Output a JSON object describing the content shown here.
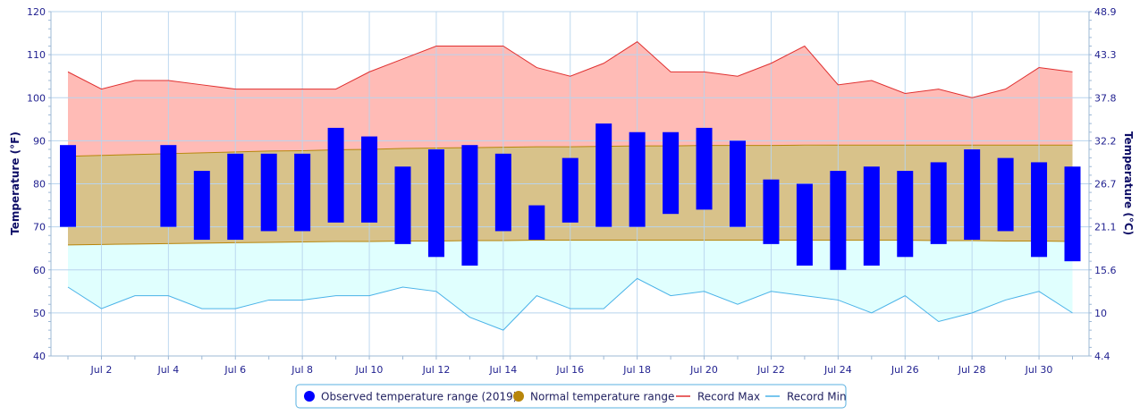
{
  "chart_data": {
    "type": "bar",
    "colors": {
      "observed": "#0000ff",
      "normal_fill": "#d8c28a",
      "normal_line": "#b8860b",
      "record_max_fill": "#ffbbb6",
      "record_max_line": "#e03030",
      "record_min_fill": "#e0fffe",
      "record_min_line": "#4ab3e8",
      "grid": "#b8d4ee",
      "axis_text": "#1f1f8f",
      "legend_border": "#5ab0e0"
    },
    "days": [
      1,
      2,
      3,
      4,
      5,
      6,
      7,
      8,
      9,
      10,
      11,
      12,
      13,
      14,
      15,
      16,
      17,
      18,
      19,
      20,
      21,
      22,
      23,
      24,
      25,
      26,
      27,
      28,
      29,
      30,
      31
    ],
    "x_tick_labels": [
      {
        "day": 2,
        "label": "Jul 2"
      },
      {
        "day": 4,
        "label": "Jul 4"
      },
      {
        "day": 6,
        "label": "Jul 6"
      },
      {
        "day": 8,
        "label": "Jul 8"
      },
      {
        "day": 10,
        "label": "Jul 10"
      },
      {
        "day": 12,
        "label": "Jul 12"
      },
      {
        "day": 14,
        "label": "Jul 14"
      },
      {
        "day": 16,
        "label": "Jul 16"
      },
      {
        "day": 18,
        "label": "Jul 18"
      },
      {
        "day": 20,
        "label": "Jul 20"
      },
      {
        "day": 22,
        "label": "Jul 22"
      },
      {
        "day": 24,
        "label": "Jul 24"
      },
      {
        "day": 26,
        "label": "Jul 26"
      },
      {
        "day": 28,
        "label": "Jul 28"
      },
      {
        "day": 30,
        "label": "Jul 30"
      }
    ],
    "y_left": {
      "title": "Temperature (°F)",
      "range": [
        40,
        120
      ],
      "ticks": [
        40,
        50,
        60,
        70,
        80,
        90,
        100,
        110,
        120
      ]
    },
    "y_right": {
      "title": "Temperature (°C)",
      "tick_labels": [
        "4.4",
        "10",
        "15.6",
        "21.1",
        "26.7",
        "32.2",
        "37.8",
        "43.3",
        "48.9"
      ]
    },
    "series": [
      {
        "name": "Observed temperature range (2019)",
        "kind": "range-bar",
        "low": [
          70,
          null,
          null,
          70,
          67,
          67,
          69,
          69,
          71,
          71,
          66,
          63,
          61,
          69,
          67,
          71,
          70,
          70,
          73,
          74,
          70,
          66,
          61,
          60,
          61,
          63,
          66,
          67,
          69,
          63,
          62
        ],
        "high": [
          89,
          null,
          null,
          89,
          83,
          87,
          87,
          87,
          93,
          91,
          84,
          88,
          89,
          87,
          75,
          86,
          94,
          92,
          92,
          93,
          90,
          81,
          80,
          83,
          84,
          83,
          85,
          88,
          86,
          85,
          84
        ]
      },
      {
        "name": "Normal temperature range",
        "kind": "range-area",
        "low": [
          65.8,
          65.9,
          66.0,
          66.1,
          66.2,
          66.3,
          66.4,
          66.5,
          66.6,
          66.6,
          66.7,
          66.7,
          66.8,
          66.8,
          66.9,
          66.9,
          66.9,
          66.9,
          66.9,
          66.9,
          66.9,
          66.9,
          66.9,
          66.9,
          66.9,
          66.9,
          66.8,
          66.8,
          66.7,
          66.7,
          66.6
        ],
        "high": [
          86.4,
          86.6,
          86.8,
          87.0,
          87.2,
          87.4,
          87.6,
          87.7,
          87.9,
          88.0,
          88.2,
          88.3,
          88.4,
          88.5,
          88.6,
          88.6,
          88.7,
          88.8,
          88.8,
          88.9,
          88.9,
          88.9,
          89.0,
          89.0,
          89.0,
          89.0,
          89.0,
          89.0,
          89.0,
          89.0,
          89.0
        ]
      },
      {
        "name": "Record Max",
        "kind": "line",
        "values": [
          106,
          102,
          104,
          104,
          103,
          102,
          102,
          102,
          102,
          106,
          109,
          112,
          112,
          112,
          107,
          105,
          108,
          113,
          106,
          106,
          105,
          108,
          112,
          103,
          104,
          101,
          102,
          100,
          102,
          107,
          106
        ]
      },
      {
        "name": "Record Min",
        "kind": "line",
        "values": [
          56,
          51,
          54,
          54,
          51,
          51,
          53,
          53,
          54,
          54,
          56,
          55,
          49,
          46,
          54,
          51,
          51,
          58,
          54,
          55,
          52,
          55,
          54,
          53,
          50,
          54,
          48,
          50,
          53,
          55,
          50
        ]
      }
    ],
    "legend": {
      "observed": "Observed temperature range (2019)",
      "normal": "Normal temperature range",
      "record_max": "Record Max",
      "record_min": "Record Min"
    },
    "grid": true,
    "legend_placement": "bottom-center"
  }
}
